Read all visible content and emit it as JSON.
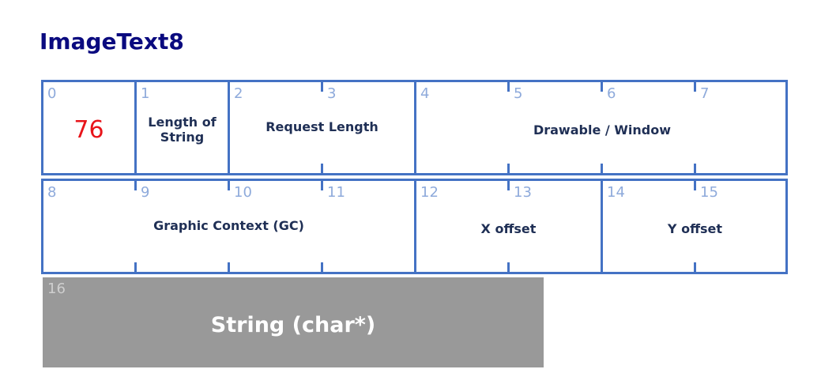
{
  "title": "ImageText8",
  "row1": {
    "bytes": [
      "0",
      "1",
      "2",
      "3",
      "4",
      "5",
      "6",
      "7"
    ],
    "opcode": "76",
    "length_of_string": "Length of String",
    "request_length": "Request Length",
    "drawable": "Drawable / Window"
  },
  "row2": {
    "bytes": [
      "8",
      "9",
      "10",
      "11",
      "12",
      "13",
      "14",
      "15"
    ],
    "gc": "Graphic Context (GC)",
    "x_offset": "X offset",
    "y_offset": "Y offset"
  },
  "string_field": {
    "byte": "16",
    "label": "String (char*)"
  },
  "colors": {
    "title": "#0a0a7f",
    "border": "#4472c4",
    "byte_number": "#8eaadb",
    "opcode": "#e8141a",
    "string_box": "#999999"
  }
}
